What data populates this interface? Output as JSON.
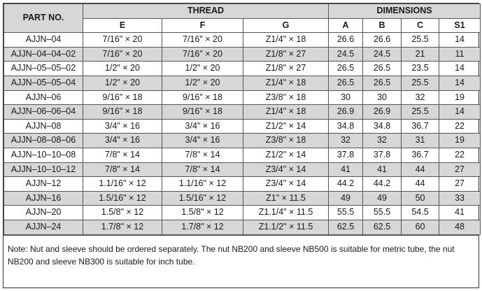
{
  "table": {
    "part_no_header": "PART NO.",
    "thread_header": "THREAD",
    "dimensions_header": "DIMENSIONS",
    "sub_headers": [
      "E",
      "F",
      "G",
      "A",
      "B",
      "C",
      "S1"
    ],
    "rows": [
      [
        "AJJN–04",
        "7/16\" × 20",
        "7/16\" × 20",
        "Z1/4\" × 18",
        "26.6",
        "26.6",
        "25.5",
        "14"
      ],
      [
        "AJJN–04–04–02",
        "7/16\" × 20",
        "7/16\" × 20",
        "Z1/8\" × 27",
        "24.5",
        "24.5",
        "21",
        "11"
      ],
      [
        "AJJN–05–05–02",
        "1/2\" × 20",
        "1/2\" × 20",
        "Z1/8\" × 27",
        "26.5",
        "26.5",
        "23.5",
        "14"
      ],
      [
        "AJJN–05–05–04",
        "1/2\" × 20",
        "1/2\" × 20",
        "Z1/4\" × 18",
        "26.5",
        "26.5",
        "25.5",
        "14"
      ],
      [
        "AJJN–06",
        "9/16\" × 18",
        "9/16\" × 18",
        "Z3/8\" × 18",
        "30",
        "30",
        "32",
        "19"
      ],
      [
        "AJJN–06–06–04",
        "9/16\" × 18",
        "9/16\" × 18",
        "Z1/4\" × 18",
        "26.9",
        "26.9",
        "25.5",
        "14"
      ],
      [
        "AJJN–08",
        "3/4\" × 16",
        "3/4\" × 16",
        "Z1/2\" × 14",
        "34.8",
        "34.8",
        "36.7",
        "22"
      ],
      [
        "AJJN–08–08–06",
        "3/4\" × 16",
        "3/4\" × 16",
        "Z3/8\" × 18",
        "32",
        "32",
        "31",
        "19"
      ],
      [
        "AJJN–10–10–08",
        "7/8\" × 14",
        "7/8\" × 14",
        "Z1/2\" × 14",
        "37.8",
        "37.8",
        "36.7",
        "22"
      ],
      [
        "AJJN–10–10–12",
        "7/8\" × 14",
        "7/8\" × 14",
        "Z3/4\" × 14",
        "41",
        "41",
        "44",
        "27"
      ],
      [
        "AJJN–12",
        "1.1/16\" × 12",
        "1.1/16\" × 12",
        "Z3/4\" × 14",
        "44.2",
        "44.2",
        "44",
        "27"
      ],
      [
        "AJJN–16",
        "1.5/16\" × 12",
        "1.5/16\" × 12",
        "Z1\" × 11.5",
        "49",
        "49",
        "50",
        "33"
      ],
      [
        "AJJN–20",
        "1.5/8\" × 12",
        "1.5/8\" × 12",
        "Z1.1/4\" × 11.5",
        "55.5",
        "55.5",
        "54.5",
        "41"
      ],
      [
        "AJJN–24",
        "1.7/8\" × 12",
        "1.7/8\" × 12",
        "Z1.1/2\" × 11.5",
        "62.5",
        "62.5",
        "60",
        "48"
      ]
    ]
  },
  "note": "Note: Nut and sleeve should be ordered separately. The nut NB200 and sleeve NB500 is suitable for metric tube, the nut NB200 and sleeve NB300 is suitable for inch tube.",
  "colors": {
    "shade": "#d7d7d7",
    "border": "#555555"
  }
}
